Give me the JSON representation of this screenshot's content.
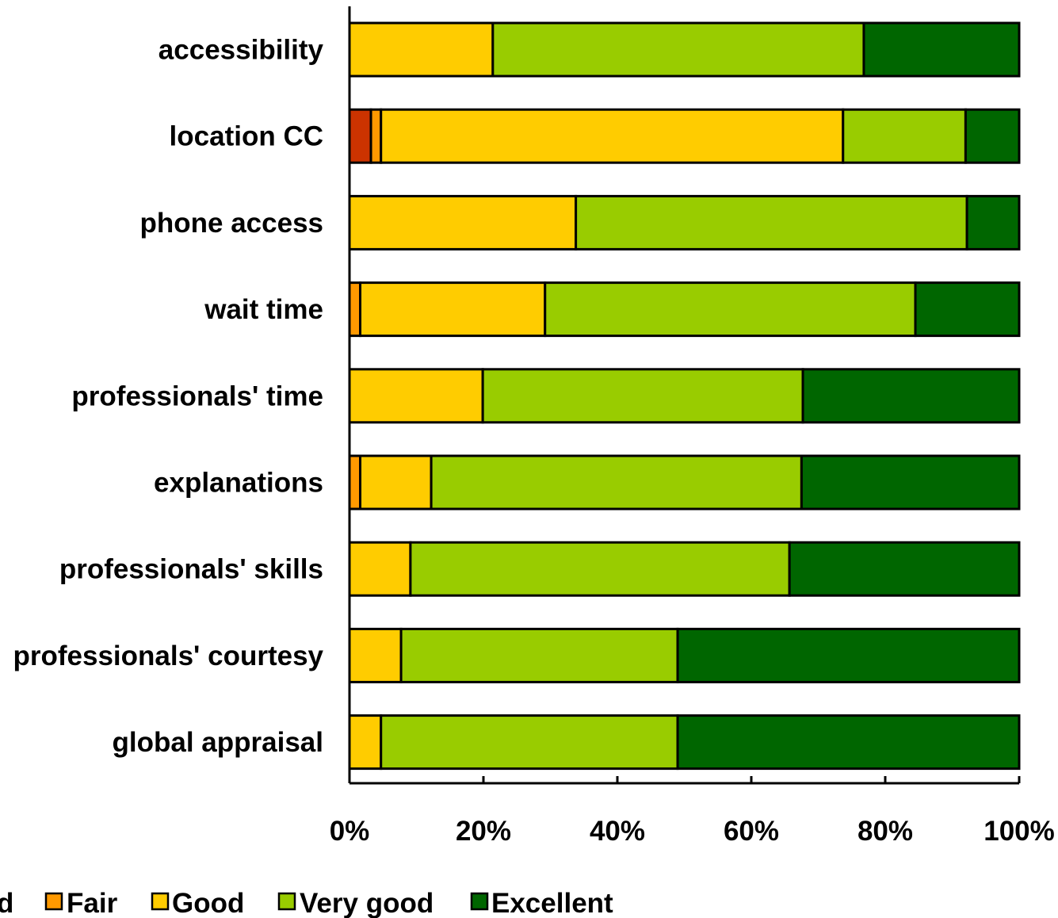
{
  "chart_data": {
    "type": "bar",
    "orientation": "horizontal",
    "stacked": true,
    "categories": [
      "accessibility",
      "location CC",
      "phone access",
      "wait time",
      "professionals' time",
      "explanations",
      "professionals' skills",
      "professionals' courtesy",
      "global appraisal"
    ],
    "series": [
      {
        "name": "Bad",
        "legend_label": "d",
        "color": "#cc3300",
        "values": [
          0,
          3.2,
          0,
          0,
          0,
          0,
          0,
          0,
          0
        ]
      },
      {
        "name": "Fair",
        "color": "#ff9900",
        "values": [
          0,
          1.5,
          0,
          1.6,
          0,
          1.6,
          0,
          0,
          0
        ]
      },
      {
        "name": "Good",
        "color": "#ffcc00",
        "values": [
          21.4,
          69.0,
          33.8,
          27.6,
          19.9,
          10.6,
          9.1,
          7.7,
          4.7
        ]
      },
      {
        "name": "Very good",
        "color": "#99cc00",
        "values": [
          55.4,
          18.3,
          58.4,
          55.3,
          47.8,
          55.3,
          56.6,
          41.3,
          44.3
        ]
      },
      {
        "name": "Excellent",
        "color": "#006600",
        "values": [
          23.2,
          8.0,
          7.8,
          15.5,
          32.3,
          32.5,
          34.3,
          51.0,
          51.0
        ]
      }
    ],
    "xlim": [
      0,
      100
    ],
    "x_ticks": [
      "0%",
      "20%",
      "40%",
      "60%",
      "80%",
      "100%"
    ],
    "grid": false,
    "legend_position": "bottom",
    "title": "",
    "xlabel": "",
    "ylabel": ""
  }
}
